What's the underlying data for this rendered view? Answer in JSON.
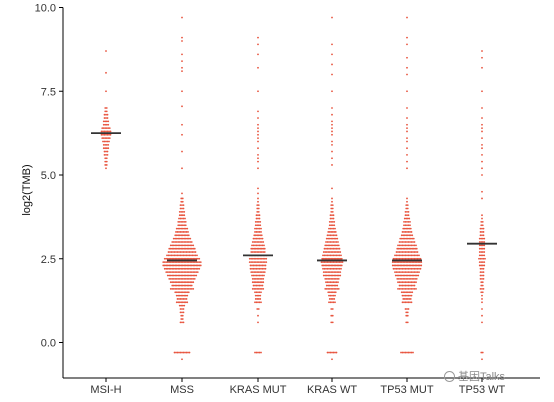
{
  "chart_data": {
    "type": "dot_strip",
    "title": "",
    "xlabel": "",
    "ylabel": "log2(TMB)",
    "ylim": [
      -1.0,
      10.0
    ],
    "yticks": [
      0.0,
      2.5,
      5.0,
      7.5,
      10.0
    ],
    "ytick_labels": [
      "0.0",
      "2.5",
      "5.0",
      "7.5",
      "10.0"
    ],
    "grid": false,
    "legend": "none",
    "point_color": "#e8553f",
    "median_color": "#333333",
    "categories": [
      "MSI-H",
      "MSS",
      "KRAS MUT",
      "KRAS WT",
      "TP53 MUT",
      "TP53 WT"
    ],
    "groups": [
      {
        "name": "MSI-H",
        "median": 6.25,
        "distribution": [
          [
            8.7,
            1
          ],
          [
            8.05,
            1
          ],
          [
            7.5,
            1
          ],
          [
            7.0,
            2
          ],
          [
            6.9,
            2
          ],
          [
            6.8,
            3
          ],
          [
            6.7,
            3
          ],
          [
            6.6,
            4
          ],
          [
            6.5,
            4
          ],
          [
            6.4,
            6
          ],
          [
            6.3,
            7
          ],
          [
            6.2,
            7
          ],
          [
            6.1,
            6
          ],
          [
            6.0,
            5
          ],
          [
            5.9,
            4
          ],
          [
            5.8,
            4
          ],
          [
            5.7,
            3
          ],
          [
            5.6,
            3
          ],
          [
            5.5,
            2
          ],
          [
            5.4,
            2
          ],
          [
            5.3,
            2
          ],
          [
            5.2,
            1
          ]
        ]
      },
      {
        "name": "MSS",
        "median": 2.45,
        "distribution": [
          [
            9.7,
            1
          ],
          [
            9.1,
            1
          ],
          [
            9.0,
            1
          ],
          [
            8.6,
            1
          ],
          [
            8.4,
            1
          ],
          [
            8.2,
            1
          ],
          [
            8.1,
            1
          ],
          [
            7.5,
            1
          ],
          [
            7.05,
            1
          ],
          [
            6.5,
            1
          ],
          [
            6.2,
            1
          ],
          [
            5.7,
            1
          ],
          [
            5.2,
            1
          ],
          [
            4.45,
            1
          ],
          [
            4.3,
            2
          ],
          [
            4.2,
            2
          ],
          [
            4.1,
            3
          ],
          [
            4.0,
            3
          ],
          [
            3.9,
            4
          ],
          [
            3.8,
            4
          ],
          [
            3.7,
            5
          ],
          [
            3.6,
            6
          ],
          [
            3.5,
            6
          ],
          [
            3.4,
            8
          ],
          [
            3.3,
            9
          ],
          [
            3.2,
            10
          ],
          [
            3.1,
            12
          ],
          [
            3.0,
            14
          ],
          [
            2.9,
            16
          ],
          [
            2.8,
            18
          ],
          [
            2.7,
            19
          ],
          [
            2.6,
            21
          ],
          [
            2.5,
            24
          ],
          [
            2.4,
            26
          ],
          [
            2.3,
            26
          ],
          [
            2.2,
            24
          ],
          [
            2.1,
            22
          ],
          [
            2.0,
            20
          ],
          [
            1.9,
            18
          ],
          [
            1.8,
            16
          ],
          [
            1.7,
            14
          ],
          [
            1.6,
            16
          ],
          [
            1.5,
            10
          ],
          [
            1.4,
            8
          ],
          [
            1.3,
            7
          ],
          [
            1.2,
            8
          ],
          [
            1.1,
            4
          ],
          [
            1.0,
            3
          ],
          [
            0.9,
            3
          ],
          [
            0.8,
            2
          ],
          [
            0.7,
            2
          ],
          [
            0.6,
            3
          ],
          [
            -0.3,
            11
          ],
          [
            -0.5,
            1
          ]
        ]
      },
      {
        "name": "KRAS MUT",
        "median": 2.6,
        "distribution": [
          [
            9.1,
            1
          ],
          [
            8.9,
            1
          ],
          [
            8.6,
            1
          ],
          [
            8.2,
            1
          ],
          [
            7.5,
            1
          ],
          [
            6.9,
            1
          ],
          [
            6.7,
            1
          ],
          [
            6.5,
            1
          ],
          [
            6.4,
            1
          ],
          [
            6.3,
            1
          ],
          [
            6.2,
            1
          ],
          [
            6.1,
            1
          ],
          [
            6.0,
            1
          ],
          [
            5.8,
            1
          ],
          [
            5.6,
            1
          ],
          [
            5.5,
            1
          ],
          [
            5.4,
            1
          ],
          [
            5.2,
            1
          ],
          [
            4.6,
            1
          ],
          [
            4.45,
            1
          ],
          [
            4.3,
            1
          ],
          [
            4.2,
            1
          ],
          [
            4.1,
            2
          ],
          [
            4.0,
            2
          ],
          [
            3.9,
            2
          ],
          [
            3.8,
            3
          ],
          [
            3.7,
            3
          ],
          [
            3.6,
            4
          ],
          [
            3.5,
            4
          ],
          [
            3.4,
            5
          ],
          [
            3.3,
            5
          ],
          [
            3.2,
            6
          ],
          [
            3.1,
            7
          ],
          [
            3.0,
            8
          ],
          [
            2.9,
            9
          ],
          [
            2.8,
            10
          ],
          [
            2.7,
            10
          ],
          [
            2.6,
            12
          ],
          [
            2.5,
            12
          ],
          [
            2.4,
            12
          ],
          [
            2.3,
            11
          ],
          [
            2.2,
            11
          ],
          [
            2.1,
            10
          ],
          [
            2.0,
            9
          ],
          [
            1.9,
            8
          ],
          [
            1.8,
            8
          ],
          [
            1.7,
            7
          ],
          [
            1.6,
            8
          ],
          [
            1.5,
            5
          ],
          [
            1.4,
            4
          ],
          [
            1.3,
            4
          ],
          [
            1.2,
            5
          ],
          [
            1.0,
            2
          ],
          [
            0.8,
            1
          ],
          [
            0.6,
            1
          ],
          [
            -0.3,
            5
          ]
        ]
      },
      {
        "name": "KRAS WT",
        "median": 2.45,
        "distribution": [
          [
            9.7,
            1
          ],
          [
            8.9,
            1
          ],
          [
            8.6,
            1
          ],
          [
            8.3,
            1
          ],
          [
            8.0,
            1
          ],
          [
            7.5,
            1
          ],
          [
            7.0,
            1
          ],
          [
            6.8,
            1
          ],
          [
            6.6,
            1
          ],
          [
            6.5,
            1
          ],
          [
            6.4,
            1
          ],
          [
            6.3,
            1
          ],
          [
            6.2,
            1
          ],
          [
            6.0,
            1
          ],
          [
            5.9,
            1
          ],
          [
            5.7,
            1
          ],
          [
            5.5,
            1
          ],
          [
            5.3,
            1
          ],
          [
            4.6,
            1
          ],
          [
            4.3,
            1
          ],
          [
            4.2,
            1
          ],
          [
            4.1,
            2
          ],
          [
            4.0,
            2
          ],
          [
            3.9,
            2
          ],
          [
            3.8,
            3
          ],
          [
            3.7,
            3
          ],
          [
            3.6,
            4
          ],
          [
            3.5,
            4
          ],
          [
            3.4,
            5
          ],
          [
            3.3,
            6
          ],
          [
            3.2,
            7
          ],
          [
            3.1,
            8
          ],
          [
            3.0,
            9
          ],
          [
            2.9,
            10
          ],
          [
            2.8,
            11
          ],
          [
            2.7,
            12
          ],
          [
            2.6,
            13
          ],
          [
            2.5,
            14
          ],
          [
            2.4,
            15
          ],
          [
            2.3,
            14
          ],
          [
            2.2,
            13
          ],
          [
            2.1,
            12
          ],
          [
            2.0,
            12
          ],
          [
            1.9,
            10
          ],
          [
            1.8,
            9
          ],
          [
            1.7,
            8
          ],
          [
            1.6,
            10
          ],
          [
            1.5,
            6
          ],
          [
            1.4,
            5
          ],
          [
            1.3,
            4
          ],
          [
            1.2,
            5
          ],
          [
            1.0,
            2
          ],
          [
            0.8,
            2
          ],
          [
            0.6,
            2
          ],
          [
            -0.3,
            7
          ],
          [
            -0.5,
            1
          ]
        ]
      },
      {
        "name": "TP53 MUT",
        "median": 2.45,
        "distribution": [
          [
            9.7,
            1
          ],
          [
            9.1,
            1
          ],
          [
            8.9,
            1
          ],
          [
            8.5,
            1
          ],
          [
            8.2,
            1
          ],
          [
            8.0,
            1
          ],
          [
            7.5,
            1
          ],
          [
            7.0,
            1
          ],
          [
            6.7,
            1
          ],
          [
            6.5,
            1
          ],
          [
            6.4,
            1
          ],
          [
            6.3,
            1
          ],
          [
            6.1,
            1
          ],
          [
            6.0,
            1
          ],
          [
            5.8,
            1
          ],
          [
            5.6,
            1
          ],
          [
            5.4,
            1
          ],
          [
            5.2,
            1
          ],
          [
            4.3,
            1
          ],
          [
            4.2,
            1
          ],
          [
            4.1,
            2
          ],
          [
            4.0,
            2
          ],
          [
            3.9,
            3
          ],
          [
            3.8,
            3
          ],
          [
            3.7,
            4
          ],
          [
            3.6,
            5
          ],
          [
            3.5,
            5
          ],
          [
            3.4,
            6
          ],
          [
            3.3,
            7
          ],
          [
            3.2,
            8
          ],
          [
            3.1,
            10
          ],
          [
            3.0,
            11
          ],
          [
            2.9,
            13
          ],
          [
            2.8,
            14
          ],
          [
            2.7,
            15
          ],
          [
            2.6,
            17
          ],
          [
            2.5,
            19
          ],
          [
            2.4,
            20
          ],
          [
            2.3,
            20
          ],
          [
            2.2,
            19
          ],
          [
            2.1,
            17
          ],
          [
            2.0,
            16
          ],
          [
            1.9,
            14
          ],
          [
            1.8,
            13
          ],
          [
            1.7,
            11
          ],
          [
            1.6,
            13
          ],
          [
            1.5,
            8
          ],
          [
            1.4,
            7
          ],
          [
            1.3,
            6
          ],
          [
            1.2,
            7
          ],
          [
            1.0,
            3
          ],
          [
            0.9,
            2
          ],
          [
            0.8,
            2
          ],
          [
            0.6,
            2
          ],
          [
            -0.3,
            9
          ]
        ]
      },
      {
        "name": "TP53 WT",
        "median": 2.95,
        "distribution": [
          [
            8.7,
            1
          ],
          [
            8.5,
            1
          ],
          [
            8.2,
            1
          ],
          [
            7.5,
            1
          ],
          [
            7.0,
            1
          ],
          [
            6.7,
            1
          ],
          [
            6.5,
            1
          ],
          [
            6.4,
            1
          ],
          [
            6.3,
            1
          ],
          [
            6.1,
            1
          ],
          [
            5.9,
            1
          ],
          [
            5.8,
            1
          ],
          [
            5.6,
            1
          ],
          [
            5.4,
            1
          ],
          [
            5.2,
            1
          ],
          [
            5.0,
            1
          ],
          [
            4.5,
            1
          ],
          [
            4.3,
            1
          ],
          [
            3.8,
            1
          ],
          [
            3.7,
            1
          ],
          [
            3.6,
            2
          ],
          [
            3.5,
            2
          ],
          [
            3.4,
            3
          ],
          [
            3.3,
            3
          ],
          [
            3.2,
            3
          ],
          [
            3.1,
            4
          ],
          [
            3.0,
            4
          ],
          [
            2.9,
            4
          ],
          [
            2.8,
            4
          ],
          [
            2.7,
            4
          ],
          [
            2.6,
            4
          ],
          [
            2.5,
            5
          ],
          [
            2.4,
            4
          ],
          [
            2.3,
            4
          ],
          [
            2.2,
            3
          ],
          [
            2.1,
            3
          ],
          [
            2.0,
            3
          ],
          [
            1.9,
            3
          ],
          [
            1.8,
            2
          ],
          [
            1.7,
            2
          ],
          [
            1.6,
            3
          ],
          [
            1.5,
            2
          ],
          [
            1.4,
            1
          ],
          [
            1.3,
            1
          ],
          [
            1.2,
            1
          ],
          [
            1.0,
            1
          ],
          [
            0.8,
            1
          ],
          [
            0.6,
            1
          ],
          [
            -0.3,
            2
          ],
          [
            -0.5,
            1
          ]
        ]
      }
    ]
  },
  "watermark": {
    "text": "基因Talks",
    "icon": "circle-logo-icon"
  }
}
